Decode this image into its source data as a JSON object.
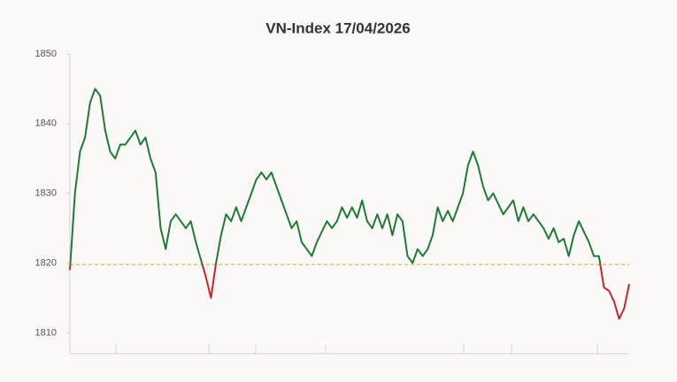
{
  "chart_data": {
    "type": "line",
    "title": "VN-Index 17/04/2026",
    "values": [
      1819,
      1830,
      1836,
      1838,
      1843,
      1845,
      1844,
      1839,
      1836,
      1835,
      1837,
      1837,
      1838,
      1839,
      1837,
      1838,
      1835,
      1833,
      1825,
      1822,
      1826,
      1827,
      1826,
      1825,
      1826,
      1823,
      1820.5,
      1818,
      1815,
      1820,
      1824,
      1827,
      1826,
      1828,
      1826,
      1828,
      1830,
      1832,
      1833,
      1832,
      1833,
      1831,
      1829,
      1827,
      1825,
      1826,
      1823,
      1822,
      1821,
      1823,
      1824.5,
      1826,
      1825,
      1826,
      1828,
      1826.5,
      1828,
      1826.5,
      1829,
      1826,
      1825,
      1827,
      1825,
      1827,
      1824,
      1827,
      1826,
      1821,
      1820,
      1822,
      1821,
      1822,
      1824,
      1828,
      1826,
      1827.5,
      1826,
      1828,
      1830,
      1834,
      1836,
      1834,
      1831,
      1829,
      1830,
      1828.5,
      1827,
      1828,
      1829,
      1826,
      1828,
      1826,
      1827,
      1826,
      1825,
      1823.5,
      1825,
      1823,
      1823.5,
      1821,
      1824,
      1826,
      1824.5,
      1823,
      1821,
      1821,
      1816.5,
      1816,
      1814.5,
      1812,
      1813.5,
      1817
    ],
    "reference": 1819.8,
    "above_color": "#1e7a34",
    "below_color": "#d0202a",
    "reference_color": "#d9a030",
    "ylim": [
      1807,
      1850
    ],
    "yticks": [
      1810,
      1820,
      1830,
      1840,
      1850
    ],
    "grid": false
  }
}
